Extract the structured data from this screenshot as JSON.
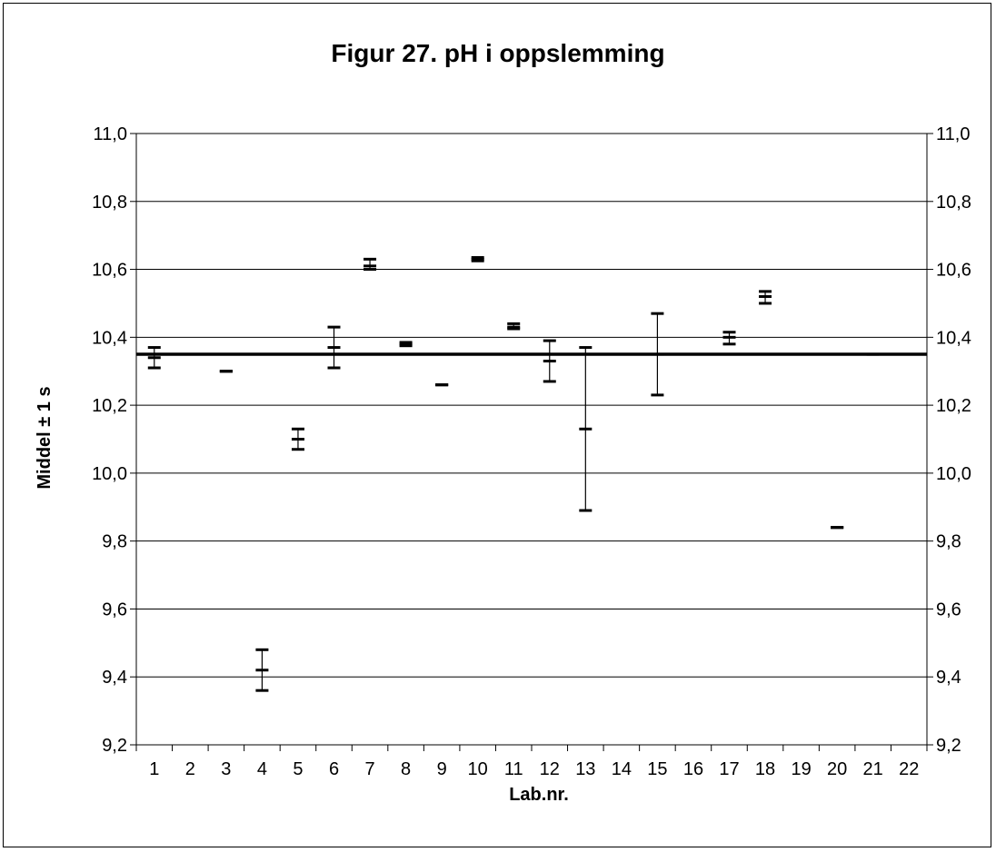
{
  "chart_data": {
    "type": "scatter",
    "title": "Figur 27. pH i oppslemming",
    "xlabel": "Lab.nr.",
    "ylabel": "Middel ± 1 s",
    "ylim": [
      9.2,
      11.0
    ],
    "y_ticks": [
      "11,0",
      "10,8",
      "10,6",
      "10,4",
      "10,2",
      "10,0",
      "9,8",
      "9,6",
      "9,4",
      "9,2"
    ],
    "y_tick_values": [
      11.0,
      10.8,
      10.6,
      10.4,
      10.2,
      10.0,
      9.8,
      9.6,
      9.4,
      9.2
    ],
    "categories": [
      "1",
      "2",
      "3",
      "4",
      "5",
      "6",
      "7",
      "8",
      "9",
      "10",
      "11",
      "12",
      "13",
      "14",
      "15",
      "16",
      "17",
      "18",
      "19",
      "20",
      "21",
      "22"
    ],
    "grid": true,
    "reference_value": 10.35,
    "points": [
      {
        "lab": "1",
        "mean": 10.34,
        "low": 10.31,
        "high": 10.37
      },
      {
        "lab": "3",
        "mean": 10.3,
        "low": 10.3,
        "high": 10.3
      },
      {
        "lab": "4",
        "mean": 9.42,
        "low": 9.36,
        "high": 9.48
      },
      {
        "lab": "5",
        "mean": 10.1,
        "low": 10.07,
        "high": 10.13
      },
      {
        "lab": "6",
        "mean": 10.37,
        "low": 10.31,
        "high": 10.43
      },
      {
        "lab": "7",
        "mean": 10.61,
        "low": 10.6,
        "high": 10.63
      },
      {
        "lab": "8",
        "mean": 10.38,
        "low": 10.375,
        "high": 10.385
      },
      {
        "lab": "9",
        "mean": 10.26,
        "low": 10.26,
        "high": 10.26
      },
      {
        "lab": "10",
        "mean": 10.63,
        "low": 10.625,
        "high": 10.635
      },
      {
        "lab": "11",
        "mean": 10.43,
        "low": 10.425,
        "high": 10.44
      },
      {
        "lab": "12",
        "mean": 10.33,
        "low": 10.27,
        "high": 10.39
      },
      {
        "lab": "13",
        "mean": 10.13,
        "low": 9.89,
        "high": 10.37
      },
      {
        "lab": "15",
        "mean": 10.35,
        "low": 10.23,
        "high": 10.47
      },
      {
        "lab": "17",
        "mean": 10.4,
        "low": 10.38,
        "high": 10.415
      },
      {
        "lab": "18",
        "mean": 10.52,
        "low": 10.5,
        "high": 10.535
      },
      {
        "lab": "20",
        "mean": 9.84,
        "low": 9.84,
        "high": 9.84
      },
      {
        "lab": "21",
        "mean": 10.35,
        "low": 10.35,
        "high": 10.35
      }
    ],
    "colors": {
      "marks": "#000000",
      "grid": "#000000",
      "background": "#ffffff"
    }
  }
}
